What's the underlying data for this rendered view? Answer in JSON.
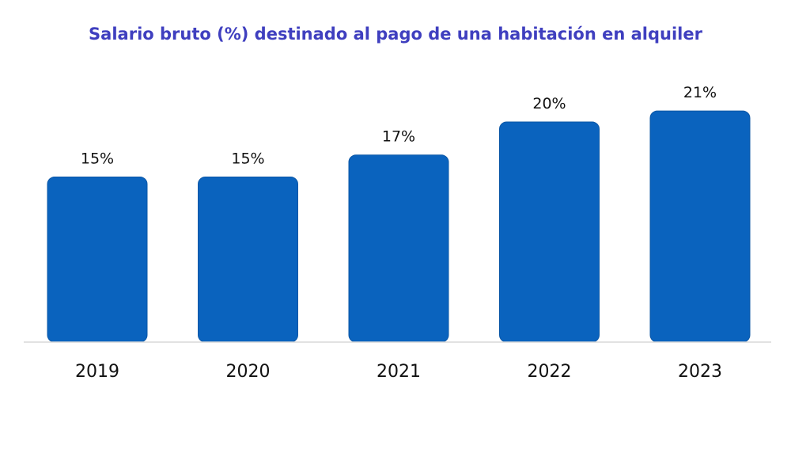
{
  "chart_data": {
    "type": "bar",
    "title": "Salario bruto (%) destinado al pago de una habitación en alquiler",
    "categories": [
      "2019",
      "2020",
      "2021",
      "2022",
      "2023"
    ],
    "values": [
      15,
      15,
      17,
      20,
      21
    ],
    "value_labels": [
      "15%",
      "15%",
      "17%",
      "20%",
      "21%"
    ],
    "xlabel": "",
    "ylabel": "",
    "ylim": [
      0,
      21
    ],
    "grid": false,
    "legend": "none"
  },
  "colors": {
    "bar": "#0A63BE",
    "bar_edge": "#0B57A6",
    "title": "#3F3FBF",
    "axis": "#D9D9D9",
    "text": "#111111"
  }
}
